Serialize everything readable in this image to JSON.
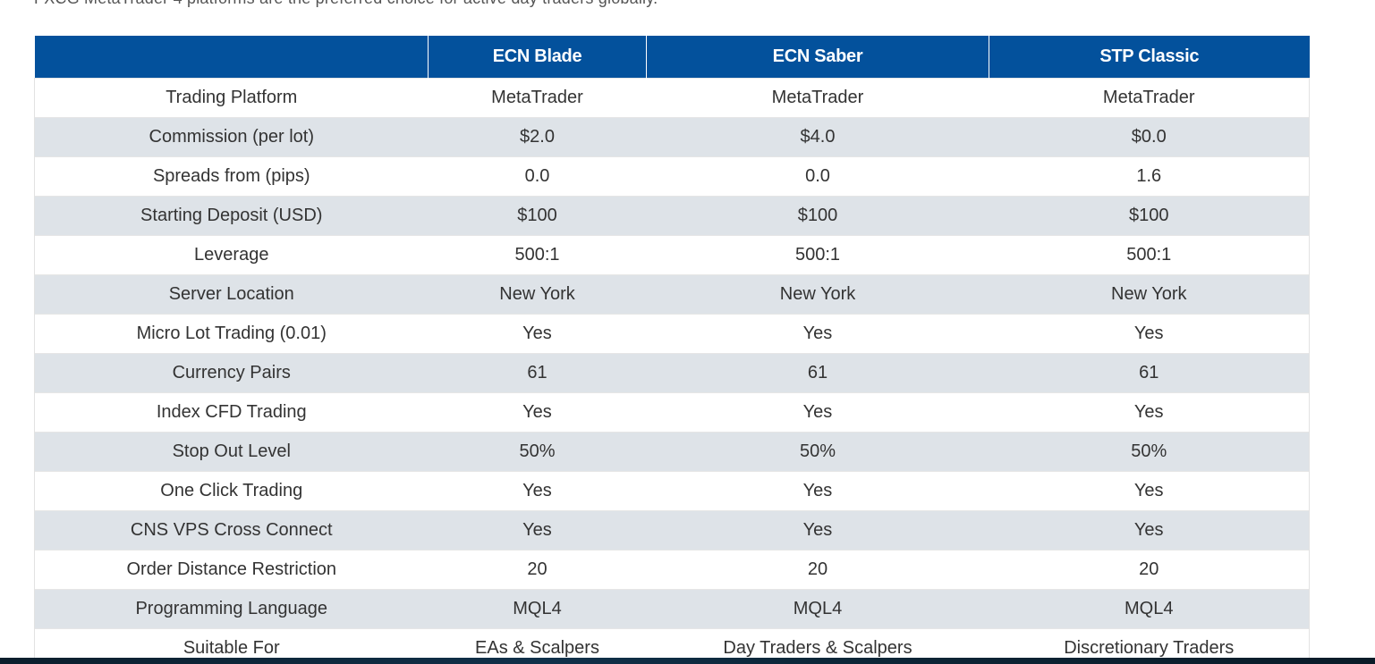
{
  "intro_text": "FXCG MetaTrader 4 platforms are the preferred choice for active day traders globally.",
  "table": {
    "headers": [
      "",
      "ECN Blade",
      "ECN Saber",
      "STP Classic"
    ],
    "rows": [
      [
        "Trading Platform",
        "MetaTrader",
        "MetaTrader",
        "MetaTrader"
      ],
      [
        "Commission (per lot)",
        "$2.0",
        "$4.0",
        "$0.0"
      ],
      [
        "Spreads from (pips)",
        "0.0",
        "0.0",
        "1.6"
      ],
      [
        "Starting Deposit (USD)",
        "$100",
        "$100",
        "$100"
      ],
      [
        "Leverage",
        "500:1",
        "500:1",
        "500:1"
      ],
      [
        "Server Location",
        "New York",
        "New York",
        "New York"
      ],
      [
        "Micro Lot Trading (0.01)",
        "Yes",
        "Yes",
        "Yes"
      ],
      [
        "Currency Pairs",
        "61",
        "61",
        "61"
      ],
      [
        "Index CFD Trading",
        "Yes",
        "Yes",
        "Yes"
      ],
      [
        "Stop Out Level",
        "50%",
        "50%",
        "50%"
      ],
      [
        "One Click Trading",
        "Yes",
        "Yes",
        "Yes"
      ],
      [
        "CNS VPS Cross Connect",
        "Yes",
        "Yes",
        "Yes"
      ],
      [
        "Order Distance Restriction",
        "20",
        "20",
        "20"
      ],
      [
        "Programming Language",
        "MQL4",
        "MQL4",
        "MQL4"
      ],
      [
        "Suitable For",
        "EAs & Scalpers",
        "Day Traders & Scalpers",
        "Discretionary Traders"
      ]
    ]
  },
  "colors": {
    "header_bg": "#03519c",
    "row_alt_bg": "#dee3e8",
    "text": "#333333"
  }
}
